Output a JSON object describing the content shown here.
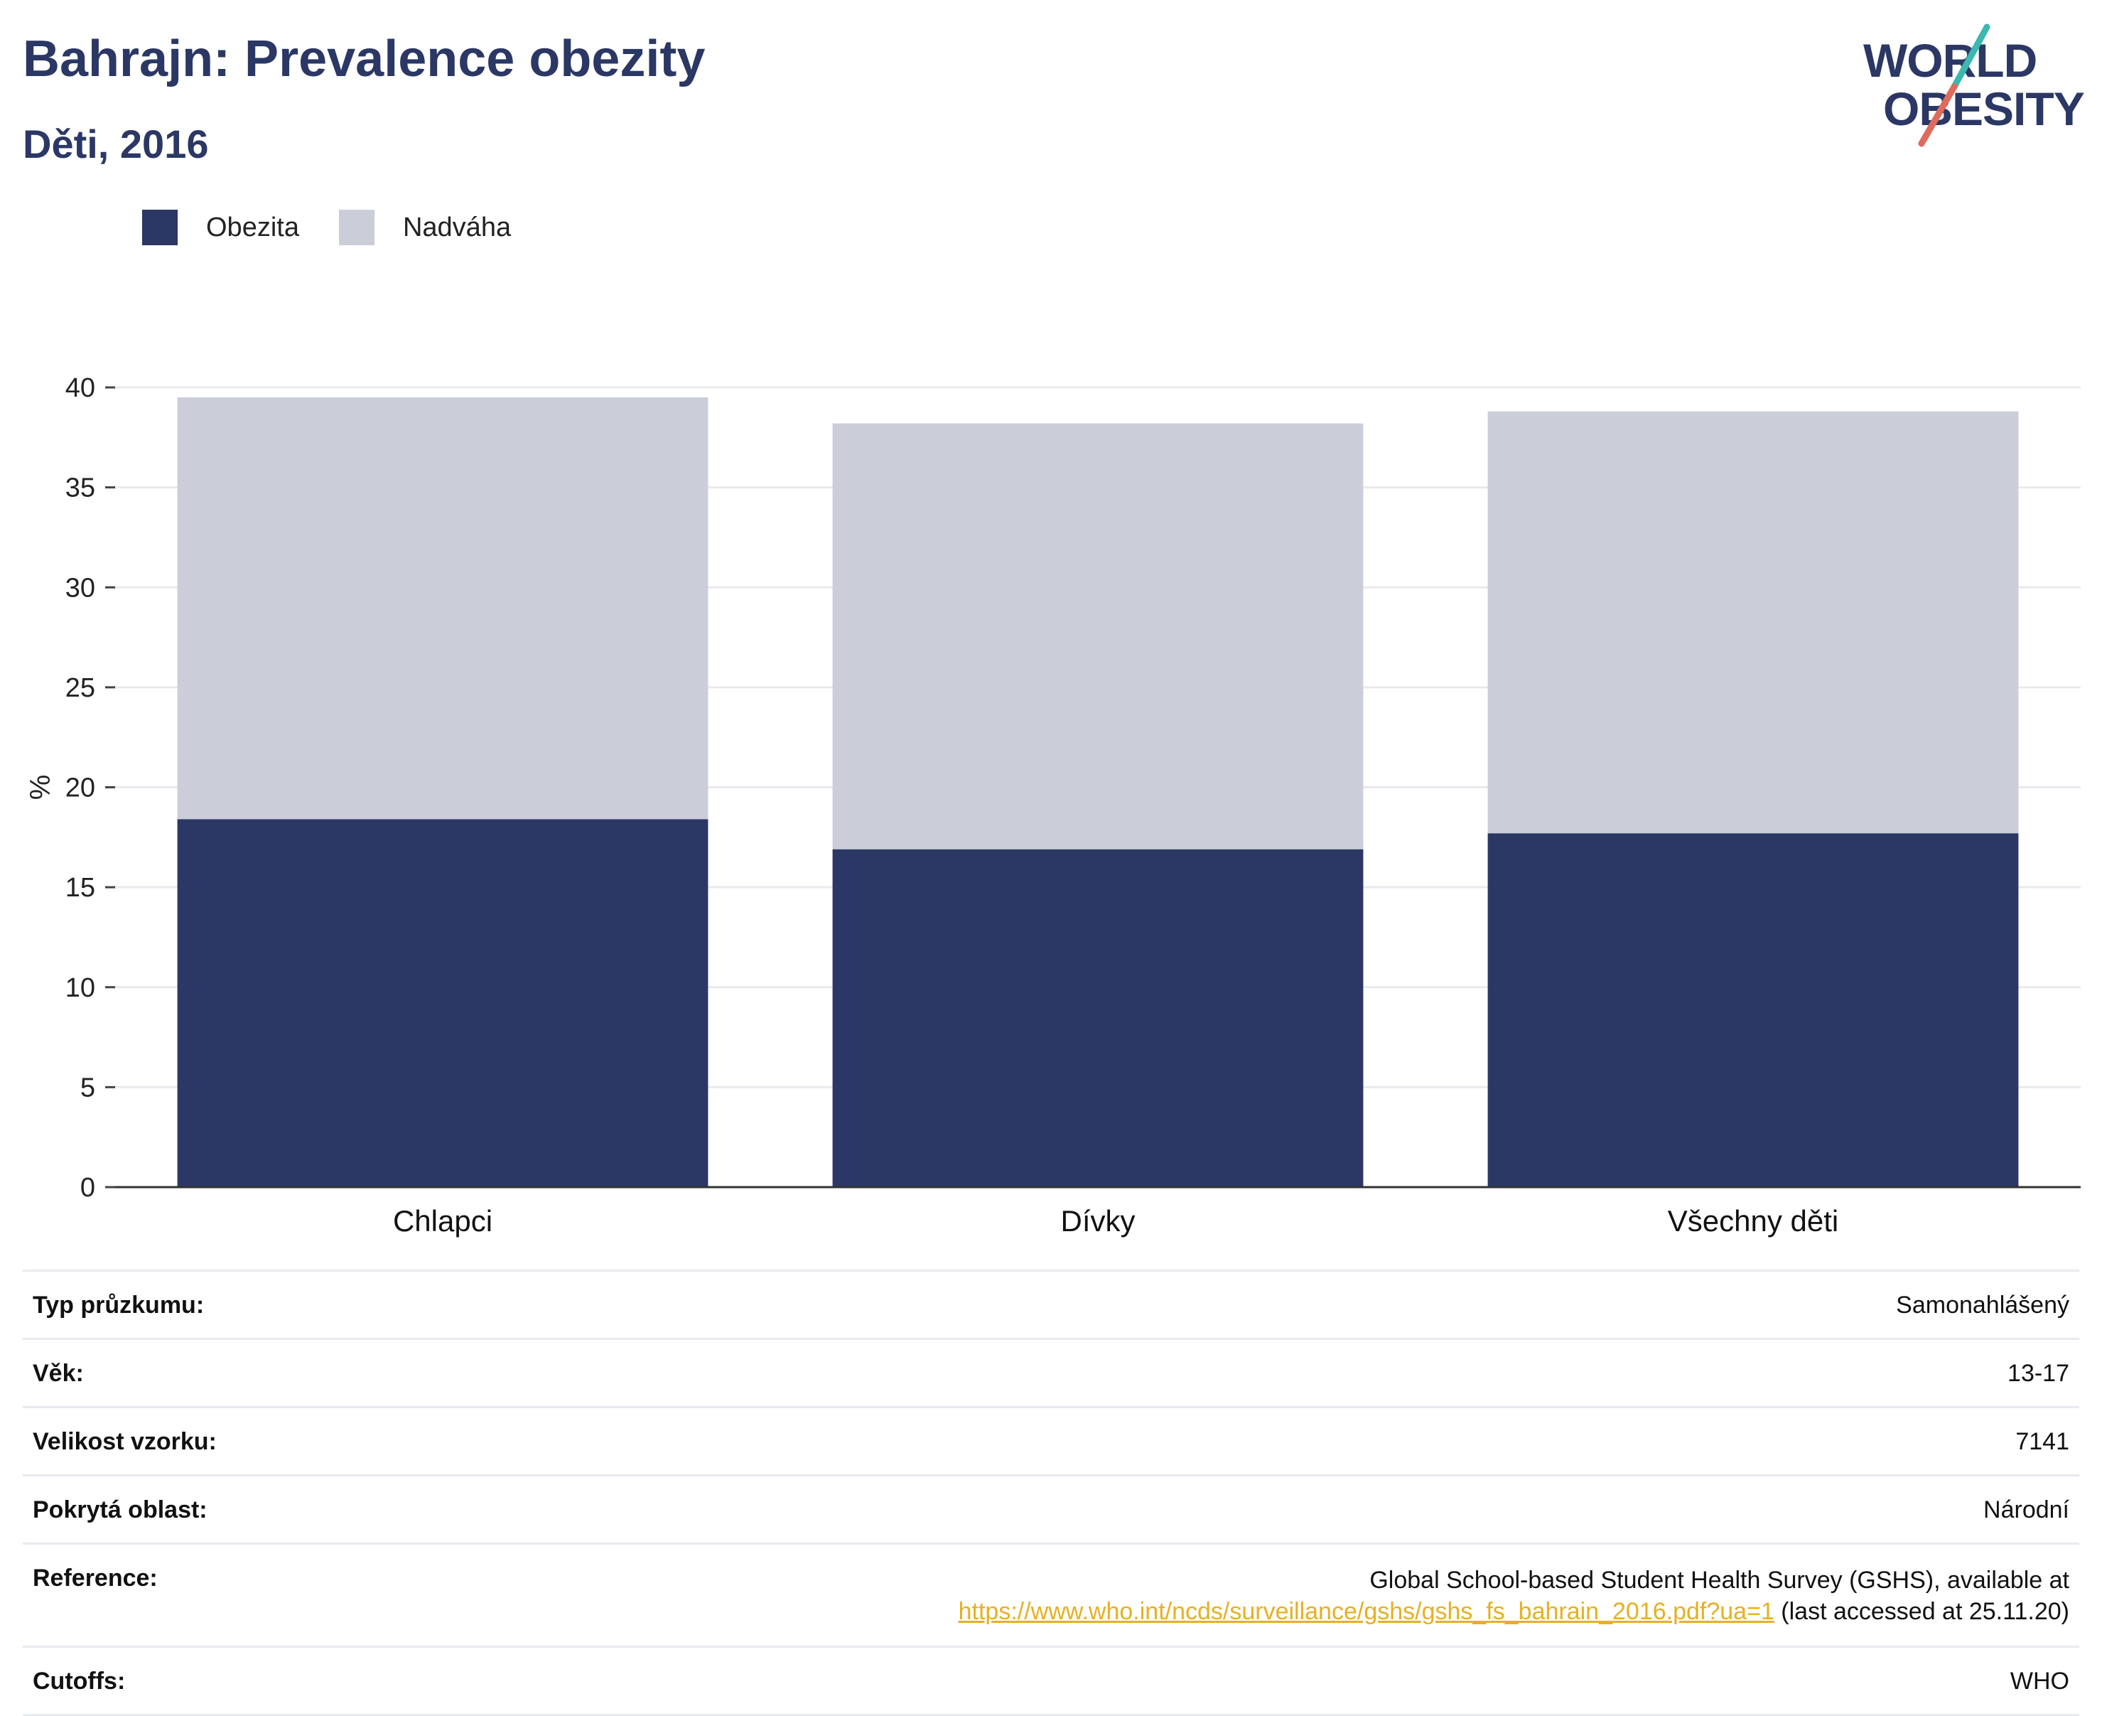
{
  "header": {
    "title": "Bahrajn: Prevalence obezity",
    "subtitle": "Děti, 2016"
  },
  "logo": {
    "line1": "WORLD",
    "line2": "OBESITY",
    "colors": {
      "text": "#2b3764",
      "slash_top": "#3bb8b0",
      "slash_bottom": "#e06a5b"
    }
  },
  "legend": [
    {
      "label": "Obezita",
      "color": "#2b3764"
    },
    {
      "label": "Nadváha",
      "color": "#cbcdd9"
    }
  ],
  "chart_data": {
    "type": "bar",
    "stacked": true,
    "categories": [
      "Chlapci",
      "Dívky",
      "Všechny děti"
    ],
    "series": [
      {
        "name": "Obezita",
        "values": [
          18.4,
          16.9,
          17.7
        ],
        "color": "#2b3764"
      },
      {
        "name": "Nadváha",
        "values": [
          21.1,
          21.3,
          21.1
        ],
        "color": "#cbcdd9"
      }
    ],
    "ylabel": "%",
    "ylim": [
      0,
      40
    ],
    "yticks": [
      0,
      5,
      10,
      15,
      20,
      25,
      30,
      35,
      40
    ],
    "grid": true
  },
  "info": [
    {
      "label": "Typ průzkumu:",
      "value": "Samonahlášený"
    },
    {
      "label": "Věk:",
      "value": "13-17"
    },
    {
      "label": "Velikost vzorku:",
      "value": "7141"
    },
    {
      "label": "Pokrytá oblast:",
      "value": "Národní"
    }
  ],
  "reference": {
    "label": "Reference:",
    "text_before": "Global School-based Student Health Survey (GSHS), available at",
    "link": "https://www.who.int/ncds/surveillance/gshs/gshs_fs_bahrain_2016.pdf?ua=1",
    "text_after": " (last accessed at 25.11.20)"
  },
  "cutoffs": {
    "label": "Cutoffs:",
    "value": "WHO"
  }
}
